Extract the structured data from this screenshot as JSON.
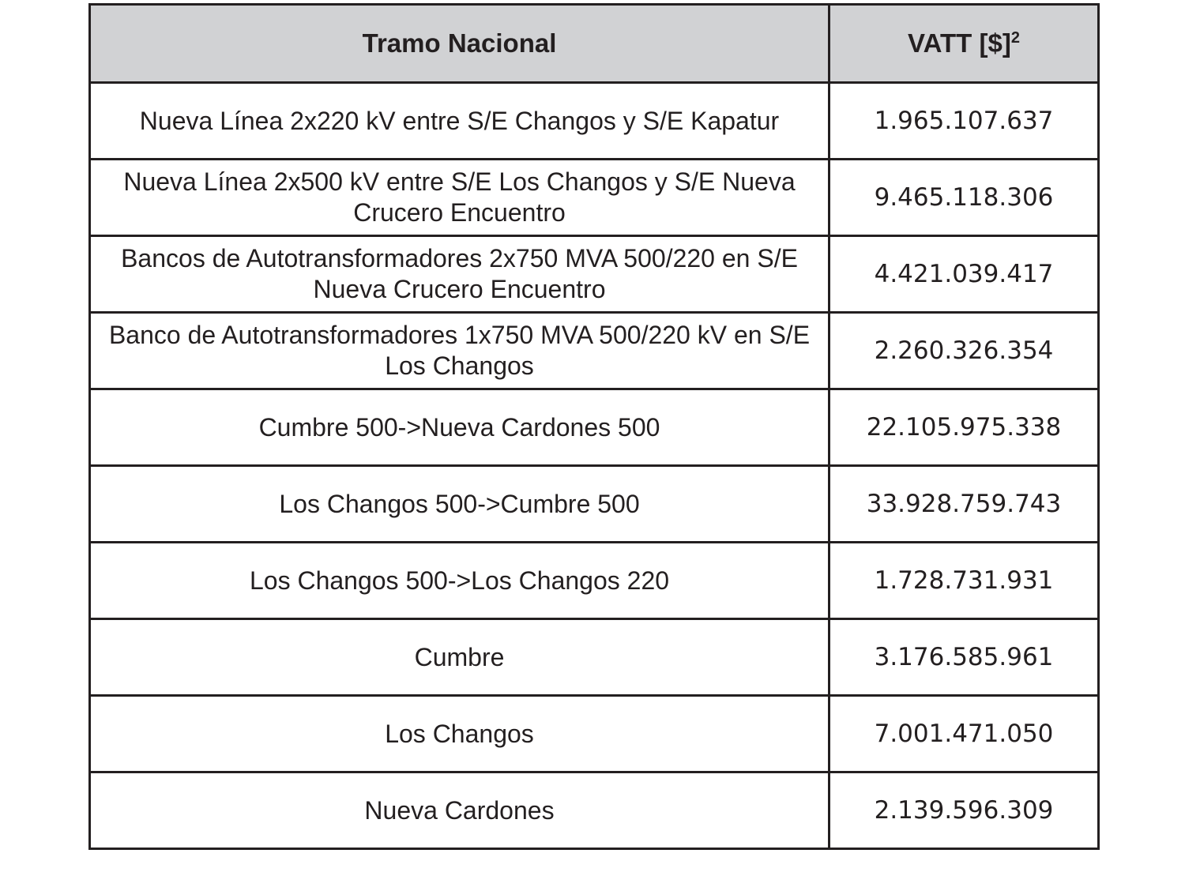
{
  "table": {
    "header": {
      "col1": "Tramo Nacional",
      "col2": "VATT [$]",
      "col2_sup": "2"
    },
    "rows": [
      {
        "tramo": "Nueva Línea 2x220 kV entre S/E Changos y S/E Kapatur",
        "vatt": "1.965.107.637"
      },
      {
        "tramo": "Nueva Línea 2x500 kV entre S/E Los Changos y S/E Nueva Crucero Encuentro",
        "vatt": "9.465.118.306"
      },
      {
        "tramo": "Bancos de Autotransformadores 2x750 MVA 500/220 en S/E Nueva Crucero Encuentro",
        "vatt": "4.421.039.417"
      },
      {
        "tramo": "Banco de Autotransformadores 1x750 MVA 500/220 kV en S/E Los Changos",
        "vatt": "2.260.326.354"
      },
      {
        "tramo": "Cumbre 500->Nueva Cardones 500",
        "vatt": "22.105.975.338"
      },
      {
        "tramo": "Los Changos 500->Cumbre 500",
        "vatt": "33.928.759.743"
      },
      {
        "tramo": "Los Changos 500->Los Changos 220",
        "vatt": "1.728.731.931"
      },
      {
        "tramo": "Cumbre",
        "vatt": "3.176.585.961"
      },
      {
        "tramo": "Los Changos",
        "vatt": "7.001.471.050"
      },
      {
        "tramo": "Nueva Cardones",
        "vatt": "2.139.596.309"
      }
    ]
  }
}
